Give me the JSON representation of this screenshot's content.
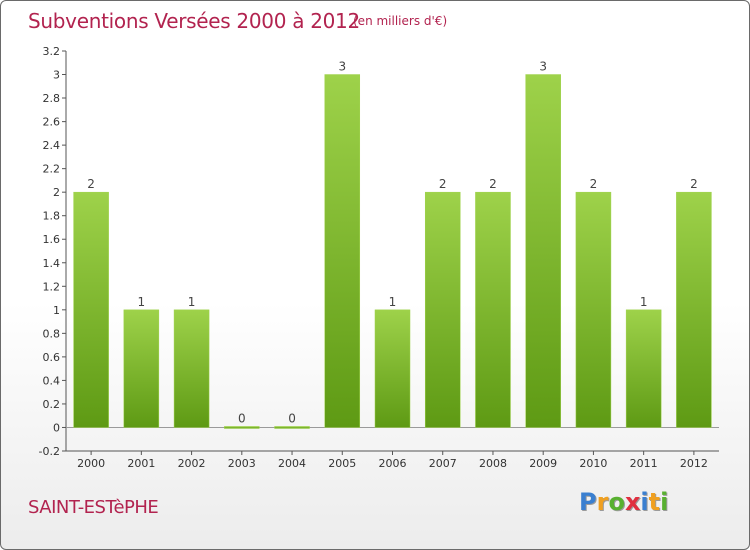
{
  "header": {
    "title": "Subventions Versées 2000 à 2012",
    "subtitle": "(en milliers d'€)"
  },
  "footer": {
    "commune": "SAINT-ESTèPHE",
    "logo_text": "Proxiti",
    "logo_letters": [
      {
        "char": "P",
        "color": "#3a7fd0"
      },
      {
        "char": "r",
        "color": "#f0a020"
      },
      {
        "char": "o",
        "color": "#58b030"
      },
      {
        "char": "x",
        "color": "#e03040"
      },
      {
        "char": "i",
        "color": "#3a7fd0"
      },
      {
        "char": "t",
        "color": "#f0a020"
      },
      {
        "char": "i",
        "color": "#58b030"
      }
    ]
  },
  "chart_data": {
    "type": "bar",
    "title": "Subventions Versées 2000 à 2012",
    "subtitle": "(en milliers d'€)",
    "xlabel": "",
    "ylabel": "",
    "categories": [
      "2000",
      "2001",
      "2002",
      "2003",
      "2004",
      "2005",
      "2006",
      "2007",
      "2008",
      "2009",
      "2010",
      "2011",
      "2012"
    ],
    "values": [
      2,
      1,
      1,
      0,
      0,
      3,
      1,
      2,
      2,
      3,
      2,
      1,
      2
    ],
    "data_labels": [
      "2",
      "1",
      "1",
      "0",
      "0",
      "3",
      "1",
      "2",
      "2",
      "3",
      "2",
      "1",
      "2"
    ],
    "ylim": [
      -0.2,
      3.2
    ],
    "yticks": [
      -0.2,
      0,
      0.2,
      0.4,
      0.6,
      0.8,
      1,
      1.2,
      1.4,
      1.6,
      1.8,
      2,
      2.2,
      2.4,
      2.6,
      2.8,
      3,
      3.2
    ],
    "ytick_labels": [
      "-0.2",
      "0",
      "0.2",
      "0.4",
      "0.6",
      "0.8",
      "1",
      "1.2",
      "1.4",
      "1.6",
      "1.8",
      "2",
      "2.2",
      "2.4",
      "2.6",
      "2.8",
      "3",
      "3.2"
    ],
    "grid": false,
    "legend": "none",
    "colors": {
      "bar_light": "#9ed24a",
      "bar_dark": "#5e9a14",
      "title": "#b2234f",
      "axis": "#555555"
    }
  }
}
